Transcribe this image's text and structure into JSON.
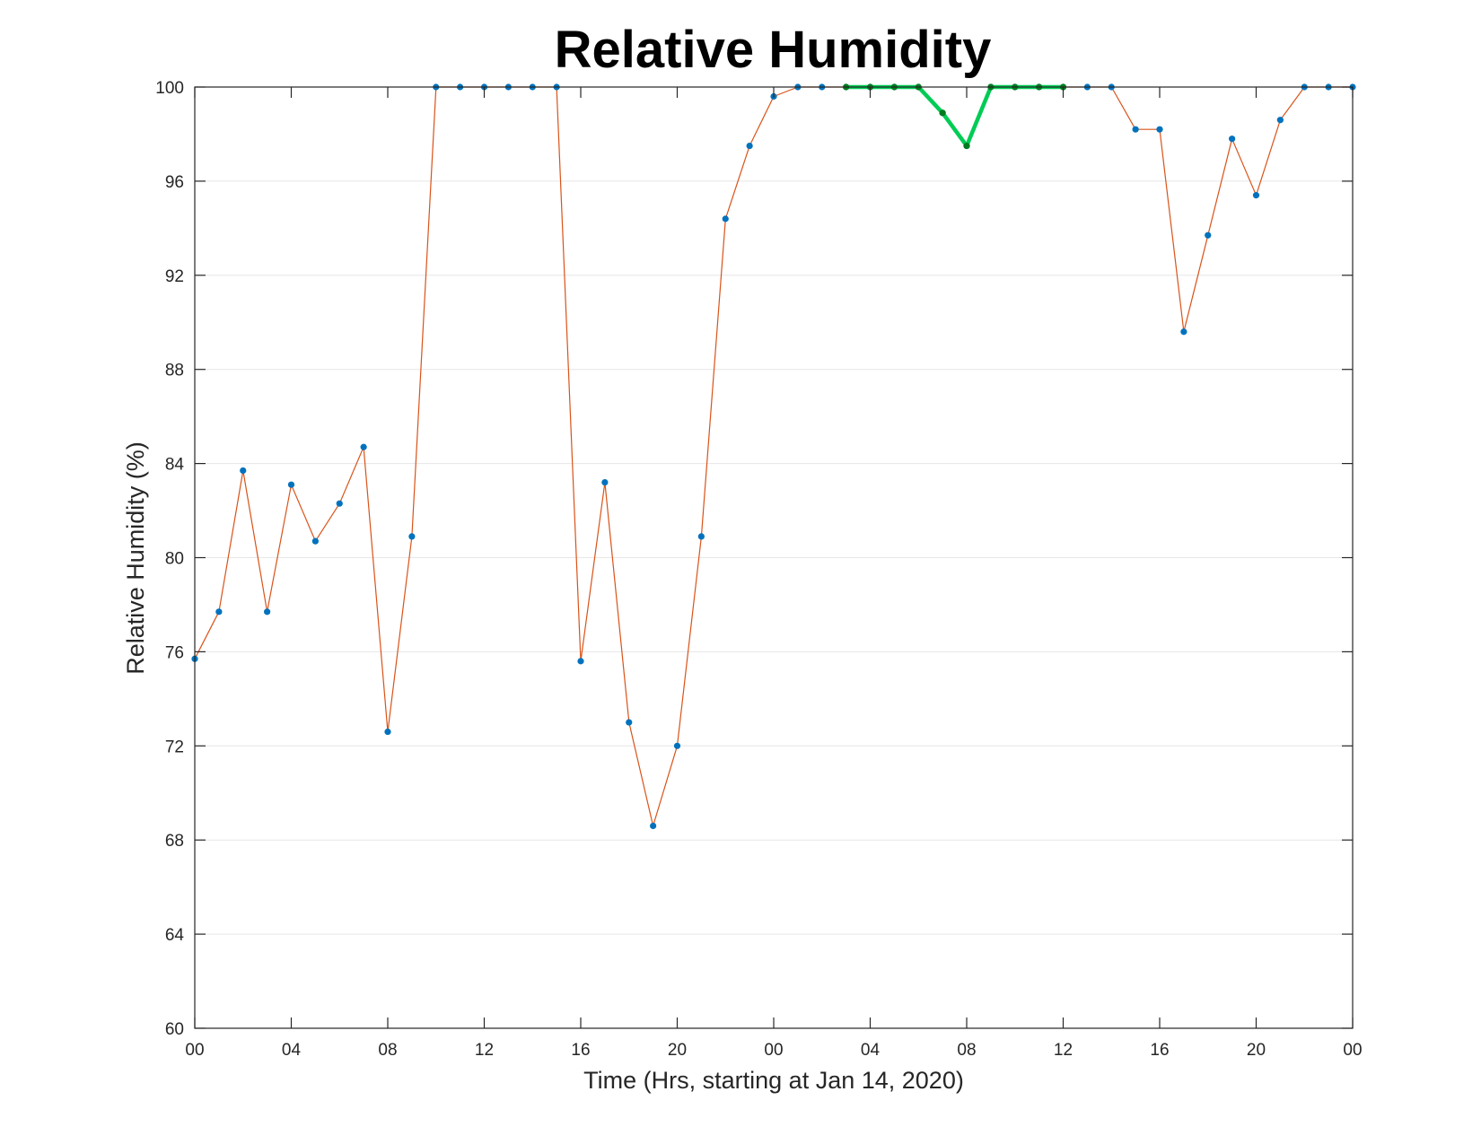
{
  "chart_data": {
    "type": "line",
    "title": "Relative Humidity",
    "xlabel": "Time (Hrs, starting at Jan 14, 2020)",
    "ylabel": "Relative Humidity (%)",
    "ylim": [
      60,
      100
    ],
    "xlim": [
      0,
      48
    ],
    "grid": "horizontal",
    "x_ticks": [
      {
        "x": 0,
        "label": "00"
      },
      {
        "x": 4,
        "label": "04"
      },
      {
        "x": 8,
        "label": "08"
      },
      {
        "x": 12,
        "label": "12"
      },
      {
        "x": 16,
        "label": "16"
      },
      {
        "x": 20,
        "label": "20"
      },
      {
        "x": 24,
        "label": "00"
      },
      {
        "x": 28,
        "label": "04"
      },
      {
        "x": 32,
        "label": "08"
      },
      {
        "x": 36,
        "label": "12"
      },
      {
        "x": 40,
        "label": "16"
      },
      {
        "x": 44,
        "label": "20"
      },
      {
        "x": 48,
        "label": "00"
      }
    ],
    "y_ticks": [
      60,
      64,
      68,
      72,
      76,
      80,
      84,
      88,
      92,
      96,
      100
    ],
    "x": [
      0,
      1,
      2,
      3,
      4,
      5,
      6,
      7,
      8,
      9,
      10,
      11,
      12,
      13,
      14,
      15,
      16,
      17,
      18,
      19,
      20,
      21,
      22,
      23,
      24,
      25,
      26,
      27,
      28,
      29,
      30,
      31,
      32,
      33,
      34,
      35,
      36,
      37,
      38,
      39,
      40,
      41,
      42,
      43,
      44,
      45,
      46,
      47,
      48
    ],
    "series": [
      {
        "values": [
          75.7,
          77.7,
          83.7,
          77.7,
          83.1,
          80.7,
          82.3,
          84.7,
          72.6,
          80.9,
          100,
          100,
          100,
          100,
          100,
          100,
          75.6,
          83.2,
          73,
          68.6,
          72,
          80.9,
          94.4,
          97.5,
          99.6,
          100,
          100,
          100,
          100,
          100,
          100,
          98.9,
          97.5,
          100,
          100,
          100,
          100,
          100,
          100,
          98.2,
          98.2,
          89.6,
          93.7,
          97.8,
          95.4,
          98.6,
          100,
          100,
          100
        ],
        "color": "#d95319",
        "marker_color": "#0072bd"
      },
      {
        "x": [
          27,
          28,
          29,
          30,
          31,
          32,
          33,
          34,
          35,
          36
        ],
        "values": [
          100,
          100,
          100,
          100,
          98.9,
          97.5,
          100,
          100,
          100,
          100
        ],
        "color": "#00cc55",
        "marker_color": "#007a1f"
      }
    ]
  }
}
